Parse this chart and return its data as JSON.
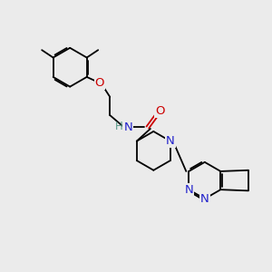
{
  "bg_color": "#ebebeb",
  "bond_color": "#000000",
  "N_color": "#2222cc",
  "O_color": "#cc0000",
  "H_color": "#5a9a8a",
  "bond_lw": 1.3,
  "font_size": 8.5,
  "fig_width": 3.0,
  "fig_height": 3.0,
  "xlim": [
    0,
    10
  ],
  "ylim": [
    0,
    10
  ]
}
